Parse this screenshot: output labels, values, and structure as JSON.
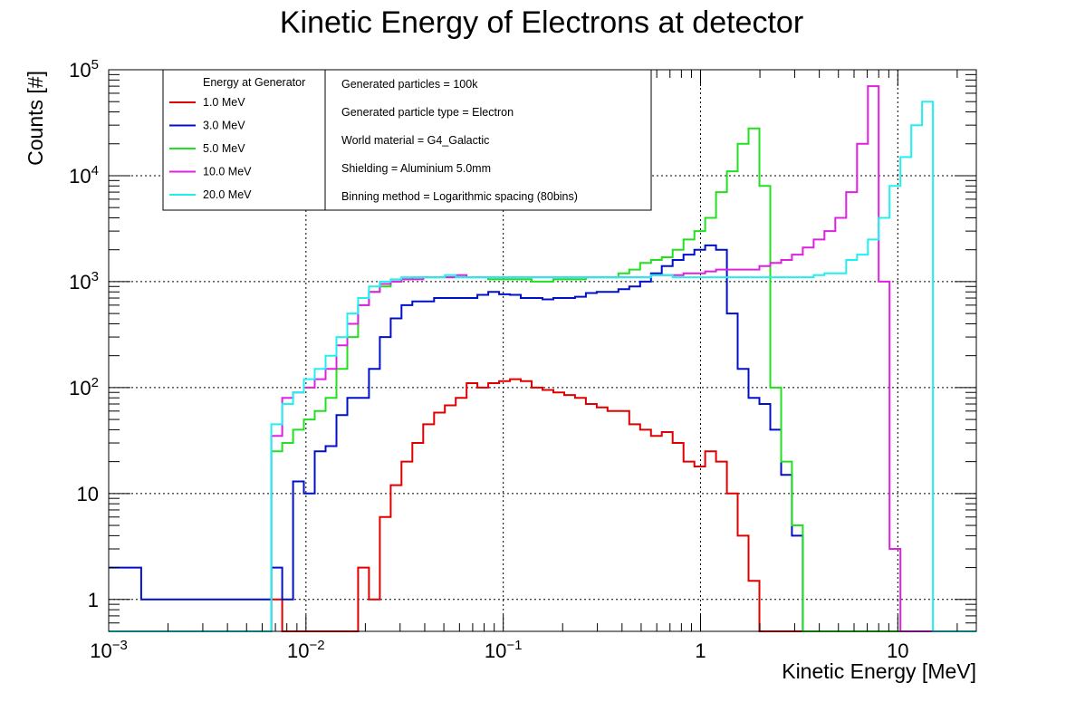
{
  "chart_data": {
    "type": "line",
    "title": "Kinetic Energy of Electrons at detector",
    "xlabel": "Kinetic Energy [MeV]",
    "ylabel": "Counts [#]",
    "xscale": "log",
    "yscale": "log",
    "xlim": [
      0.001,
      25
    ],
    "ylim": [
      0.5,
      100000
    ],
    "grid": true,
    "x_ticks": [
      {
        "value": 0.001,
        "base": "10",
        "exp": "−3"
      },
      {
        "value": 0.01,
        "base": "10",
        "exp": "−2"
      },
      {
        "value": 0.1,
        "base": "10",
        "exp": "−1"
      },
      {
        "value": 1,
        "base": "1",
        "exp": ""
      },
      {
        "value": 10,
        "base": "10",
        "exp": ""
      }
    ],
    "y_ticks": [
      {
        "value": 1,
        "base": "1",
        "exp": ""
      },
      {
        "value": 10,
        "base": "10",
        "exp": ""
      },
      {
        "value": 100,
        "base": "10",
        "exp": "2"
      },
      {
        "value": 1000,
        "base": "10",
        "exp": "3"
      },
      {
        "value": 10000,
        "base": "10",
        "exp": "4"
      },
      {
        "value": 100000,
        "base": "10",
        "exp": "5"
      }
    ],
    "legend": {
      "title": "Energy at Generator",
      "placement": "top-left"
    },
    "info_box": [
      "Generated particles = 100k",
      "Generated particle type = Electron",
      "World material = G4_Galactic",
      "Shielding = Aluminium 5.0mm",
      "Binning method = Logarithmic spacing (80bins)"
    ],
    "bins": {
      "n": 80,
      "xmin": 0.001,
      "xmax": 25
    },
    "series": [
      {
        "name": "1.0 MeV",
        "color": "#e00000",
        "values": [
          0,
          0,
          0,
          0,
          0,
          0,
          0,
          0,
          0,
          0,
          0,
          0,
          0,
          0,
          0,
          1,
          0,
          0,
          0,
          0,
          0,
          0,
          0,
          2,
          1,
          6,
          12,
          20,
          30,
          45,
          58,
          68,
          80,
          110,
          100,
          110,
          115,
          120,
          115,
          100,
          95,
          90,
          85,
          80,
          70,
          65,
          60,
          60,
          45,
          40,
          35,
          38,
          30,
          20,
          18,
          25,
          20,
          10,
          4,
          1.5,
          0.4,
          0,
          0,
          0,
          0,
          0,
          0,
          0,
          0,
          0,
          0,
          0,
          0,
          0,
          0,
          0,
          0,
          0,
          0,
          0
        ]
      },
      {
        "name": "3.0 MeV",
        "color": "#0010c8",
        "values": [
          2,
          2,
          2,
          1,
          1,
          1,
          1,
          1,
          1,
          1,
          1,
          1,
          1,
          1,
          1,
          2,
          1,
          13,
          10,
          25,
          28,
          55,
          80,
          80,
          150,
          300,
          450,
          600,
          650,
          650,
          700,
          700,
          700,
          700,
          750,
          800,
          760,
          750,
          700,
          700,
          680,
          700,
          700,
          720,
          780,
          800,
          800,
          850,
          900,
          1000,
          1200,
          1400,
          1600,
          1800,
          2000,
          2200,
          2000,
          500,
          150,
          80,
          70,
          40,
          15,
          4,
          0.4,
          0,
          0,
          0,
          0,
          0,
          0,
          0,
          0,
          0,
          0,
          0,
          0,
          0,
          0,
          0
        ]
      },
      {
        "name": "5.0 MeV",
        "color": "#20e020",
        "values": [
          0,
          0,
          0,
          0,
          0,
          0,
          0,
          0,
          0,
          0,
          0,
          0,
          0,
          0,
          0,
          25,
          30,
          40,
          50,
          60,
          80,
          150,
          300,
          600,
          800,
          900,
          1000,
          1050,
          1100,
          1100,
          1100,
          1100,
          1100,
          1100,
          1100,
          1050,
          1050,
          1050,
          1050,
          1000,
          1000,
          1050,
          1050,
          1050,
          1100,
          1100,
          1100,
          1200,
          1300,
          1500,
          1600,
          1700,
          2000,
          2500,
          3000,
          4000,
          7000,
          11000,
          20000,
          28000,
          8000,
          100,
          20,
          5,
          0.4,
          0,
          0,
          0,
          0,
          0,
          0,
          0,
          0,
          0,
          0,
          0,
          0,
          0,
          0,
          0
        ]
      },
      {
        "name": "10.0 MeV",
        "color": "#e020e0",
        "values": [
          0,
          0,
          0,
          0,
          0,
          0,
          0,
          0,
          0,
          0,
          0,
          0,
          0,
          0,
          0,
          35,
          80,
          90,
          100,
          120,
          150,
          250,
          400,
          600,
          800,
          950,
          1000,
          1050,
          1050,
          1100,
          1100,
          1100,
          1150,
          1100,
          1100,
          1100,
          1100,
          1100,
          1100,
          1100,
          1100,
          1100,
          1100,
          1100,
          1100,
          1100,
          1100,
          1100,
          1100,
          1100,
          1150,
          1150,
          1150,
          1200,
          1200,
          1250,
          1300,
          1300,
          1300,
          1300,
          1400,
          1500,
          1600,
          1800,
          2100,
          2500,
          3000,
          4000,
          7000,
          20000,
          70000,
          1000,
          3,
          0.4,
          0,
          0,
          0,
          0,
          0,
          0
        ]
      },
      {
        "name": "20.0 MeV",
        "color": "#20f0f0",
        "values": [
          0,
          0,
          0,
          0,
          0,
          0,
          0,
          0,
          0,
          0,
          0,
          0,
          0,
          0,
          0,
          45,
          70,
          90,
          120,
          150,
          200,
          300,
          500,
          700,
          900,
          1000,
          1050,
          1100,
          1100,
          1100,
          1100,
          1150,
          1100,
          1100,
          1100,
          1100,
          1100,
          1100,
          1100,
          1100,
          1100,
          1100,
          1100,
          1100,
          1100,
          1100,
          1100,
          1100,
          1100,
          1100,
          1150,
          1150,
          1100,
          1100,
          1100,
          1100,
          1100,
          1100,
          1100,
          1100,
          1100,
          1100,
          1100,
          1100,
          1100,
          1150,
          1200,
          1200,
          1600,
          1800,
          2500,
          4000,
          8000,
          15000,
          30000,
          50000,
          0.4,
          0,
          0,
          0
        ]
      }
    ]
  }
}
